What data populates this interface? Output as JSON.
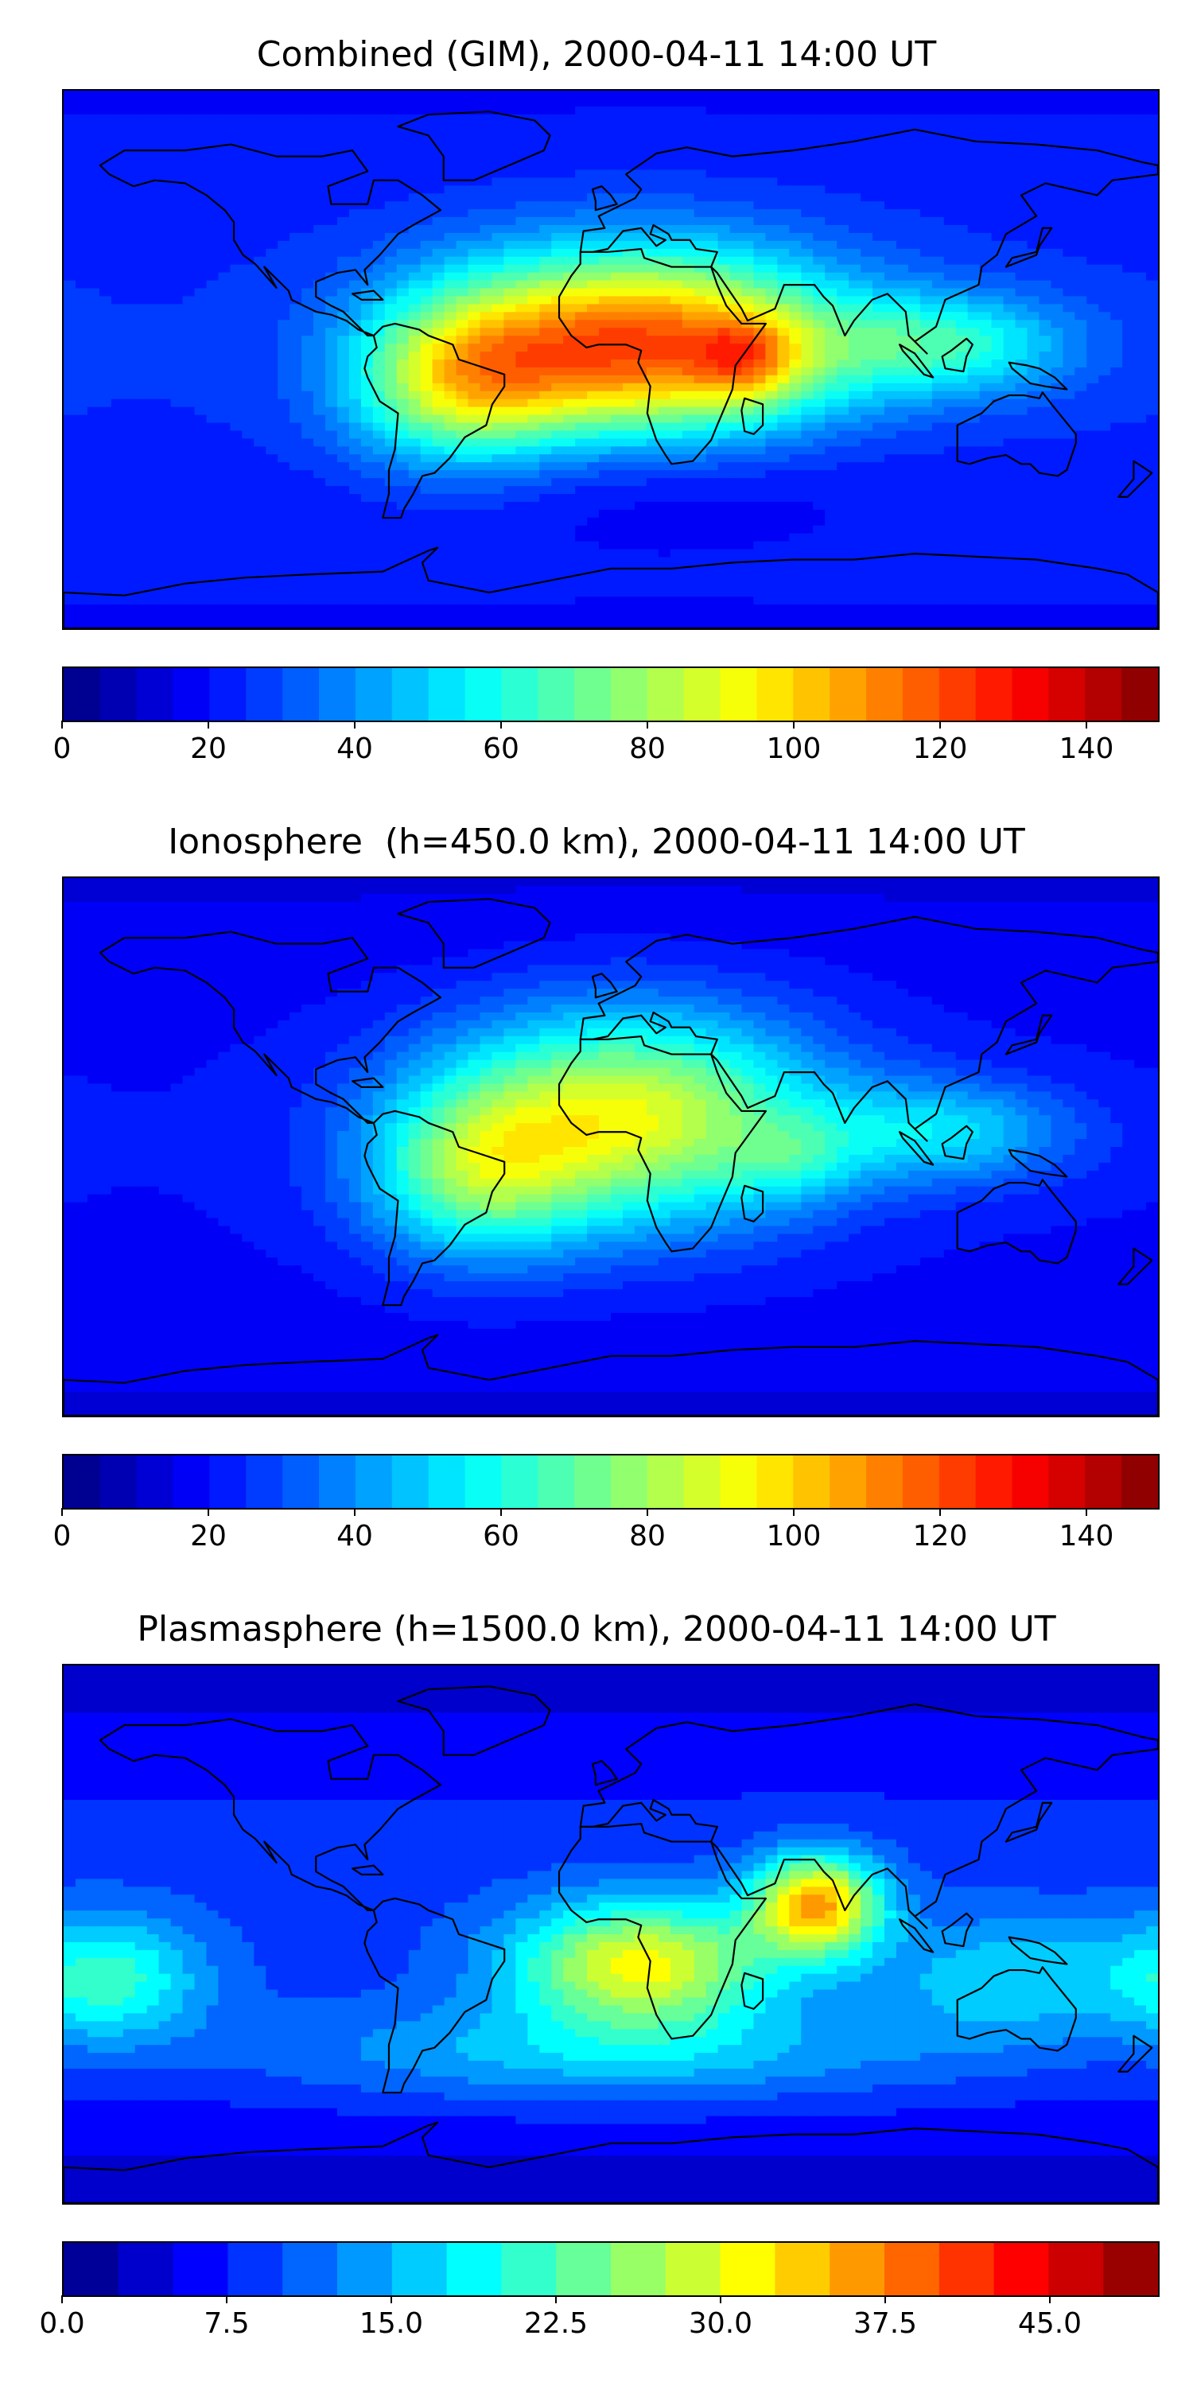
{
  "maps": [
    {
      "title": "Combined (GIM), 2000-04-11 14:00 UT",
      "colorbar": {
        "min": 0,
        "max": 150,
        "levels": 30,
        "ticks": [
          {
            "value": 0,
            "label": "0"
          },
          {
            "value": 20,
            "label": "20"
          },
          {
            "value": 40,
            "label": "40"
          },
          {
            "value": 60,
            "label": "60"
          },
          {
            "value": 80,
            "label": "80"
          },
          {
            "value": 100,
            "label": "100"
          },
          {
            "value": 120,
            "label": "120"
          },
          {
            "value": 140,
            "label": "140"
          }
        ]
      },
      "field": {
        "background": 25,
        "blobs": [
          {
            "lon": 10,
            "lat": 5,
            "amp": 95,
            "slon": 45,
            "slat": 22
          },
          {
            "lon": -50,
            "lat": -8,
            "amp": 50,
            "slon": 25,
            "slat": 20
          },
          {
            "lon": 45,
            "lat": 0,
            "amp": 30,
            "slon": 12,
            "slat": 10
          },
          {
            "lon": 110,
            "lat": 5,
            "amp": 35,
            "slon": 30,
            "slat": 12
          },
          {
            "lon": 10,
            "lat": -40,
            "amp": -10,
            "slon": 60,
            "slat": 15
          }
        ]
      }
    },
    {
      "title": "Ionosphere  (h=450.0 km), 2000-04-11 14:00 UT",
      "colorbar": {
        "min": 0,
        "max": 150,
        "levels": 30,
        "ticks": [
          {
            "value": 0,
            "label": "0"
          },
          {
            "value": 20,
            "label": "20"
          },
          {
            "value": 40,
            "label": "40"
          },
          {
            "value": 60,
            "label": "60"
          },
          {
            "value": 80,
            "label": "80"
          },
          {
            "value": 100,
            "label": "100"
          },
          {
            "value": 120,
            "label": "120"
          },
          {
            "value": 140,
            "label": "140"
          }
        ]
      },
      "field": {
        "background": 20,
        "blobs": [
          {
            "lon": 5,
            "lat": 10,
            "amp": 70,
            "slon": 45,
            "slat": 25
          },
          {
            "lon": -45,
            "lat": -10,
            "amp": 40,
            "slon": 25,
            "slat": 20
          },
          {
            "lon": 110,
            "lat": 5,
            "amp": 30,
            "slon": 30,
            "slat": 12
          },
          {
            "lon": 60,
            "lat": -5,
            "amp": 15,
            "slon": 15,
            "slat": 10
          }
        ]
      }
    },
    {
      "title": "Plasmasphere (h=1500.0 km), 2000-04-11 14:00 UT",
      "colorbar": {
        "min": 0,
        "max": 50,
        "levels": 20,
        "ticks": [
          {
            "value": 0,
            "label": "0.0"
          },
          {
            "value": 7.5,
            "label": "7.5"
          },
          {
            "value": 15,
            "label": "15.0"
          },
          {
            "value": 22.5,
            "label": "22.5"
          },
          {
            "value": 30,
            "label": "30.0"
          },
          {
            "value": 37.5,
            "label": "37.5"
          },
          {
            "value": 45,
            "label": "45.0"
          }
        ]
      },
      "field": {
        "background": 9,
        "blobs": [
          {
            "lon": 10,
            "lat": -10,
            "amp": 22,
            "slon": 30,
            "slat": 15
          },
          {
            "lon": 68,
            "lat": 10,
            "amp": 26,
            "slon": 15,
            "slat": 12
          },
          {
            "lon": -165,
            "lat": -15,
            "amp": 12,
            "slon": 22,
            "slat": 15
          },
          {
            "lon": 0,
            "lat": -40,
            "amp": 8,
            "slon": 80,
            "slat": 12
          },
          {
            "lon": 130,
            "lat": -15,
            "amp": 8,
            "slon": 30,
            "slat": 15
          }
        ]
      }
    }
  ]
}
